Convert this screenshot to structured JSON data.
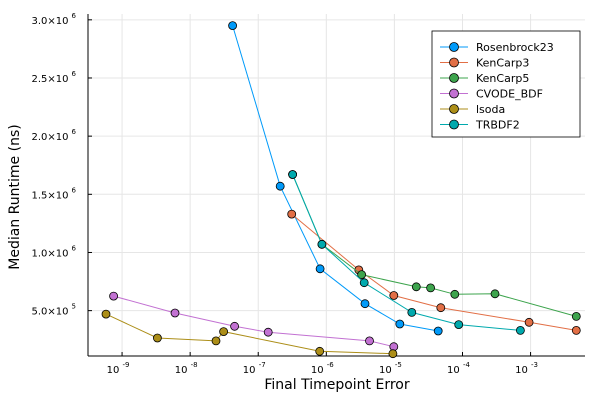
{
  "chart_data": {
    "type": "line",
    "title": "",
    "xlabel": "Final Timepoint Error",
    "ylabel": "Median Runtime (ns)",
    "x_scale": "log10",
    "xlim": [
      3.16e-10,
      0.0063
    ],
    "ylim": [
      110000,
      3050000
    ],
    "grid": true,
    "legend_position": "top-right",
    "x_ticks": [
      {
        "base": "10",
        "exp": "-9",
        "value": 1e-09
      },
      {
        "base": "10",
        "exp": "-8",
        "value": 1e-08
      },
      {
        "base": "10",
        "exp": "-7",
        "value": 1e-07
      },
      {
        "base": "10",
        "exp": "-6",
        "value": 1e-06
      },
      {
        "base": "10",
        "exp": "-5",
        "value": 1e-05
      },
      {
        "base": "10",
        "exp": "-4",
        "value": 0.0001
      },
      {
        "base": "10",
        "exp": "-3",
        "value": 0.001
      }
    ],
    "y_ticks": [
      {
        "mant": "5.0×10",
        "exp": "5",
        "value": 500000
      },
      {
        "mant": "1.0×10",
        "exp": "6",
        "value": 1000000
      },
      {
        "mant": "1.5×10",
        "exp": "6",
        "value": 1500000
      },
      {
        "mant": "2.0×10",
        "exp": "6",
        "value": 2000000
      },
      {
        "mant": "2.5×10",
        "exp": "6",
        "value": 2500000
      },
      {
        "mant": "3.0×10",
        "exp": "6",
        "value": 3000000
      }
    ],
    "series": [
      {
        "name": "Rosenbrock23",
        "color": "#009af9",
        "x": [
          4.2e-08,
          2.1e-07,
          8.1e-07,
          3.7e-06,
          1.2e-05,
          4.4e-05
        ],
        "y": [
          2950000,
          1570000,
          860000,
          560000,
          385000,
          325000
        ]
      },
      {
        "name": "KenCarp3",
        "color": "#e26f46",
        "x": [
          3.1e-07,
          3e-06,
          9.8e-06,
          4.8e-05,
          0.00095,
          0.0047
        ],
        "y": [
          1330000,
          850000,
          630000,
          525000,
          400000,
          330000
        ]
      },
      {
        "name": "KenCarp5",
        "color": "#3da44d",
        "x": [
          3.2e-07,
          8.6e-07,
          3.3e-06,
          2.1e-05,
          3.4e-05,
          7.7e-05,
          0.0003,
          0.0047
        ],
        "y": [
          1670000,
          1070000,
          810000,
          705000,
          695000,
          640000,
          645000,
          450000
        ]
      },
      {
        "name": "CVODE_BDF",
        "color": "#c271d2",
        "x": [
          7.5e-10,
          6e-09,
          4.5e-08,
          1.4e-07,
          4.3e-06,
          9.8e-06
        ],
        "y": [
          625000,
          480000,
          365000,
          315000,
          240000,
          190000
        ]
      },
      {
        "name": "lsoda",
        "color": "#ac8e18",
        "x": [
          5.8e-10,
          3.3e-09,
          2.4e-08,
          3.1e-08,
          8e-07,
          9.5e-06
        ],
        "y": [
          470000,
          265000,
          240000,
          320000,
          150000,
          130000
        ]
      },
      {
        "name": "TRBDF2",
        "color": "#00a9ad",
        "x": [
          3.2e-07,
          8.6e-07,
          3.6e-06,
          1.8e-05,
          8.8e-05,
          0.00071
        ],
        "y": [
          1670000,
          1070000,
          740000,
          485000,
          380000,
          330000
        ]
      }
    ]
  }
}
